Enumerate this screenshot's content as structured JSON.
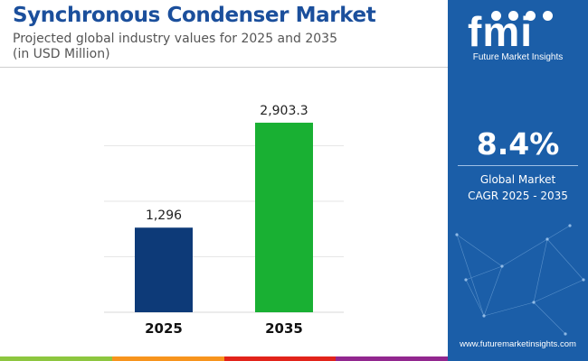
{
  "header": {
    "title": "Synchronous Condenser Market",
    "subtitle_line1": "Projected global industry values for 2025 and 2035",
    "subtitle_line2": "(in USD Million)"
  },
  "sidebar": {
    "logo_text": "fmi",
    "brand": "Future Market Insights",
    "cagr_value": "8.4%",
    "cagr_label_line1": "Global Market",
    "cagr_label_line2": "CAGR 2025 - 2035",
    "url": "www.futuremarketinsights.com"
  },
  "colors": {
    "title": "#1b4f9c",
    "panel": "#1b5ea8",
    "bar_2025": "#0d3a78",
    "bar_2035": "#19b033"
  },
  "chart_data": {
    "type": "bar",
    "categories": [
      "2025",
      "2035"
    ],
    "values": [
      1296,
      2903.3
    ],
    "value_labels": [
      "1,296",
      "2,903.3"
    ],
    "colors": [
      "#0d3a78",
      "#19b033"
    ],
    "title": "Synchronous Condenser Market",
    "ylim": [
      0,
      3400
    ],
    "grid": true
  }
}
